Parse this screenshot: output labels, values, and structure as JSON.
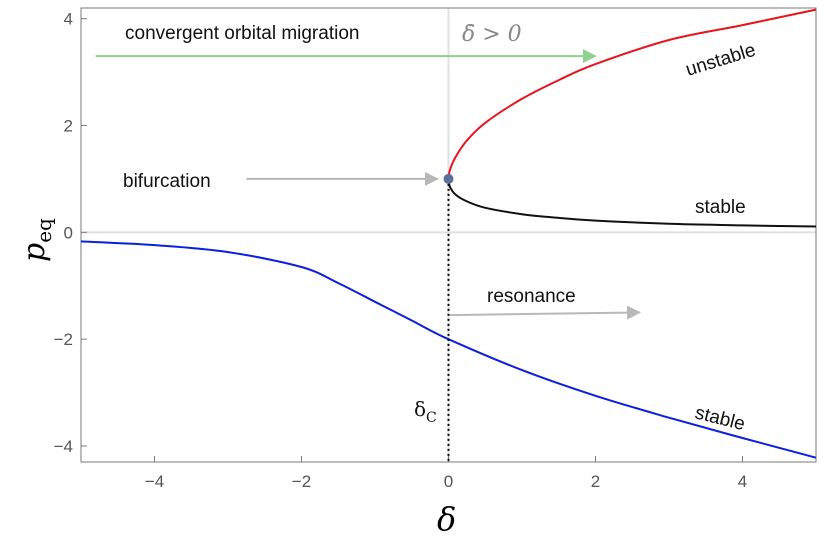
{
  "chart_data": {
    "type": "line",
    "xlabel": "δ",
    "ylabel": "p",
    "ylabel_sub": "eq",
    "xlim": [
      -5,
      5
    ],
    "ylim": [
      -4.3,
      4.2
    ],
    "xticks": [
      -4,
      -2,
      0,
      2,
      4
    ],
    "xtick_labels": [
      "−4",
      "−2",
      "0",
      "2",
      "4"
    ],
    "yticks": [
      -4,
      -2,
      0,
      2,
      4
    ],
    "ytick_labels": [
      "−4",
      "−2",
      "0",
      "2",
      "4"
    ],
    "grid": false,
    "series": [
      {
        "branch": "lower",
        "color": "#0a1fe0",
        "x": [
          -5,
          -4,
          -3,
          -2,
          -1.5,
          -1,
          -0.5,
          0,
          1,
          2,
          3,
          4,
          5
        ],
        "y": [
          -0.17,
          -0.24,
          -0.37,
          -0.65,
          -0.95,
          -1.3,
          -1.65,
          -2.0,
          -2.58,
          -3.06,
          -3.47,
          -3.85,
          -4.22
        ]
      },
      {
        "branch": "upper-unstable",
        "color": "#e8131c",
        "x": [
          0,
          0.02,
          0.1,
          0.25,
          0.5,
          1,
          1.5,
          2,
          3,
          4,
          5
        ],
        "y": [
          1.0,
          1.17,
          1.42,
          1.72,
          2.05,
          2.5,
          2.85,
          3.15,
          3.6,
          3.88,
          4.17
        ]
      },
      {
        "branch": "upper-stable",
        "color": "#111111",
        "x": [
          0,
          0.02,
          0.1,
          0.25,
          0.5,
          1,
          1.5,
          2,
          3,
          4,
          5
        ],
        "y": [
          1.0,
          0.85,
          0.7,
          0.58,
          0.46,
          0.34,
          0.27,
          0.22,
          0.16,
          0.13,
          0.11
        ]
      }
    ],
    "bifurcation_point": {
      "x": 0,
      "y": 1,
      "color": "#5b6f9a"
    },
    "annotations": {
      "migration_label": "convergent orbital migration",
      "delta_dot_condition": "δ̇ > 0",
      "bifurcation_label": "bifurcation",
      "unstable_label": "unstable",
      "stable_upper_label": "stable",
      "resonance_label": "resonance",
      "stable_lower_label": "stable",
      "delta_c_symbol": "δ",
      "delta_c_sub": "C"
    },
    "colors": {
      "migration_arrow": "#8fd18f",
      "gray_arrow": "#b8b8b8",
      "zero_lines": "#e0e0e0",
      "frame": "#7a7a7a"
    }
  }
}
